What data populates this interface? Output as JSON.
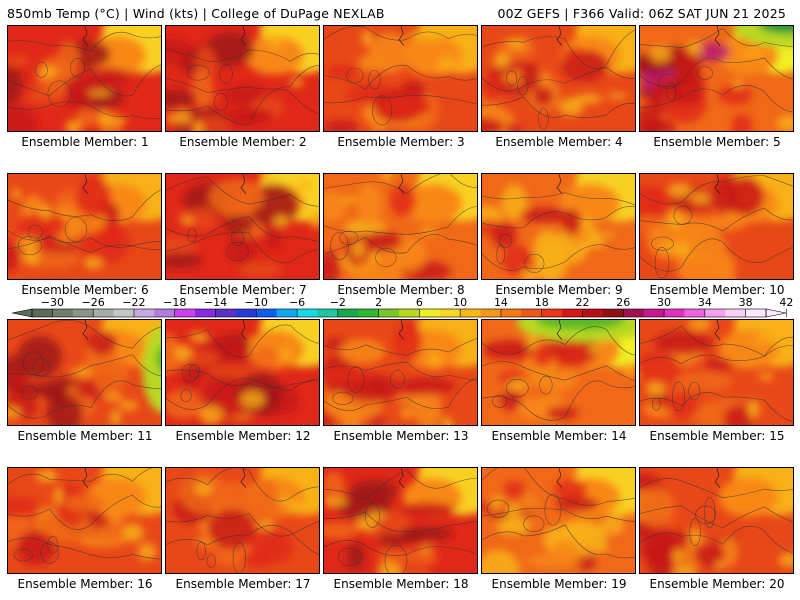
{
  "header": {
    "left": "850mb Temp (°C) | Wind (kts) | College of DuPage NEXLAB",
    "right": "00Z GEFS | F366 Valid: 06Z SAT JUN 21 2025"
  },
  "colorbar": {
    "labels": [
      "-30",
      "-26",
      "-22",
      "-18",
      "-14",
      "-10",
      "-6",
      "-2",
      "2",
      "6",
      "10",
      "14",
      "18",
      "22",
      "26",
      "30",
      "34",
      "38",
      "42"
    ],
    "colors": [
      "#5a6b5a",
      "#6f7f6f",
      "#8a958a",
      "#a7aea7",
      "#c3c7c8",
      "#c8a8e0",
      "#b27ce0",
      "#d040f0",
      "#8a2be2",
      "#5a30c8",
      "#2a3ad8",
      "#1060f0",
      "#10a8f0",
      "#18d8e8",
      "#20c8a0",
      "#18a850",
      "#30b830",
      "#78c828",
      "#b8d820",
      "#f0f020",
      "#f8d820",
      "#f8b818",
      "#f89818",
      "#f87818",
      "#f05818",
      "#e83818",
      "#d81818",
      "#b81018",
      "#901018",
      "#a01050",
      "#c81890",
      "#e030c0",
      "#f060e0",
      "#f8a0f0",
      "#f8d0f8",
      "#fde8fd"
    ]
  },
  "members": [
    {
      "label": "Ensemble Member: 1",
      "theme": "hot"
    },
    {
      "label": "Ensemble Member: 2",
      "theme": "hot"
    },
    {
      "label": "Ensemble Member: 3",
      "theme": "warm"
    },
    {
      "label": "Ensemble Member: 4",
      "theme": "warm"
    },
    {
      "label": "Ensemble Member: 5",
      "theme": "greenNE"
    },
    {
      "label": "Ensemble Member: 6",
      "theme": "warm"
    },
    {
      "label": "Ensemble Member: 7",
      "theme": "hot"
    },
    {
      "label": "Ensemble Member: 8",
      "theme": "cool"
    },
    {
      "label": "Ensemble Member: 9",
      "theme": "cool"
    },
    {
      "label": "Ensemble Member: 10",
      "theme": "warm"
    },
    {
      "label": "Ensemble Member: 11",
      "theme": "greenE"
    },
    {
      "label": "Ensemble Member: 12",
      "theme": "hot"
    },
    {
      "label": "Ensemble Member: 13",
      "theme": "warm"
    },
    {
      "label": "Ensemble Member: 14",
      "theme": "greenN"
    },
    {
      "label": "Ensemble Member: 15",
      "theme": "warm"
    },
    {
      "label": "Ensemble Member: 16",
      "theme": "warm"
    },
    {
      "label": "Ensemble Member: 17",
      "theme": "warm"
    },
    {
      "label": "Ensemble Member: 18",
      "theme": "hot"
    },
    {
      "label": "Ensemble Member: 19",
      "theme": "cool"
    },
    {
      "label": "Ensemble Member: 20",
      "theme": "warm"
    }
  ]
}
